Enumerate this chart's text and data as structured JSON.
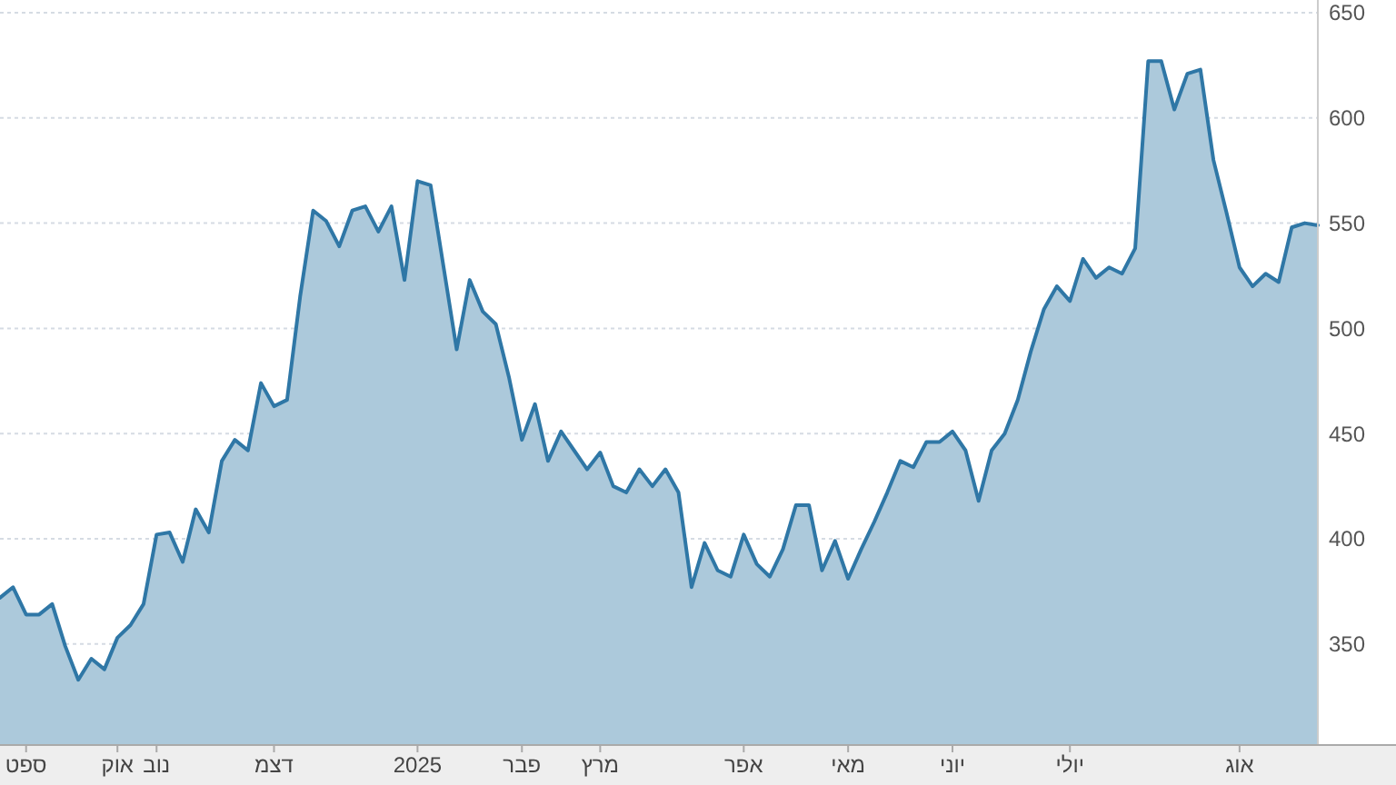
{
  "chart_data": {
    "type": "area",
    "ylim": [
      302,
      650
    ],
    "categories": [
      null,
      null,
      "ספט",
      null,
      null,
      null,
      null,
      null,
      null,
      "אוק",
      null,
      null,
      "נוב",
      null,
      null,
      null,
      null,
      null,
      null,
      null,
      null,
      "דצמ",
      null,
      null,
      null,
      null,
      null,
      null,
      null,
      null,
      null,
      null,
      "2025",
      null,
      null,
      null,
      null,
      null,
      null,
      null,
      "פבר",
      null,
      null,
      null,
      null,
      null,
      "מרץ",
      null,
      null,
      null,
      null,
      null,
      null,
      null,
      null,
      null,
      null,
      "אפר",
      null,
      null,
      null,
      null,
      null,
      null,
      null,
      "מאי",
      null,
      null,
      null,
      null,
      null,
      null,
      null,
      "יוני",
      null,
      null,
      null,
      null,
      null,
      null,
      null,
      null,
      "יולי",
      null,
      null,
      null,
      null,
      null,
      null,
      null,
      null,
      null,
      null,
      null,
      null,
      "אוג",
      null,
      null,
      null,
      null,
      null,
      null
    ],
    "yticks": [
      350,
      400,
      450,
      500,
      550,
      600,
      650
    ],
    "grid": "y",
    "series": [
      {
        "color": "#2f77a6",
        "values": [
          372,
          377,
          364,
          364,
          369,
          349,
          333,
          343,
          338,
          353,
          359,
          369,
          402,
          403,
          389,
          414,
          403,
          437,
          447,
          442,
          474,
          463,
          466,
          515,
          556,
          551,
          539,
          556,
          558,
          546,
          558,
          523,
          570,
          568,
          529,
          490,
          523,
          508,
          502,
          477,
          447,
          464,
          437,
          451,
          442,
          433,
          441,
          425,
          422,
          433,
          425,
          433,
          422,
          377,
          398,
          385,
          382,
          402,
          388,
          382,
          395,
          416,
          416,
          385,
          399,
          381,
          395,
          408,
          422,
          437,
          434,
          446,
          446,
          451,
          442,
          418,
          442,
          450,
          466,
          489,
          509,
          520,
          513,
          533,
          524,
          529,
          526,
          538,
          627,
          627,
          604,
          621,
          623,
          580,
          555,
          529,
          520,
          526,
          522,
          548,
          550,
          549
        ]
      }
    ]
  }
}
